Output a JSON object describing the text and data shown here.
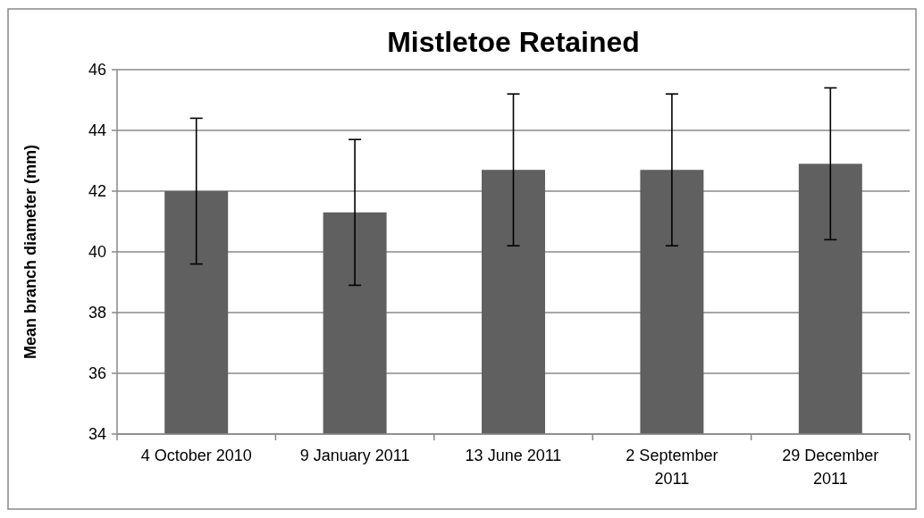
{
  "chart_data": {
    "type": "bar",
    "title": "Mistletoe Retained",
    "ylabel": "Mean branch diameter (mm)",
    "categories": [
      "4 October 2010",
      "9 January 2011",
      "13 June 2011",
      "2 September 2011",
      "29 December 2011"
    ],
    "values": [
      42.0,
      41.3,
      42.7,
      42.7,
      42.9
    ],
    "errors": [
      2.4,
      2.4,
      2.5,
      2.5,
      2.5
    ],
    "color": "#606060",
    "ylim": [
      34,
      46
    ],
    "yticks": [
      34,
      36,
      38,
      40,
      42,
      44,
      46
    ],
    "grid": "y"
  }
}
